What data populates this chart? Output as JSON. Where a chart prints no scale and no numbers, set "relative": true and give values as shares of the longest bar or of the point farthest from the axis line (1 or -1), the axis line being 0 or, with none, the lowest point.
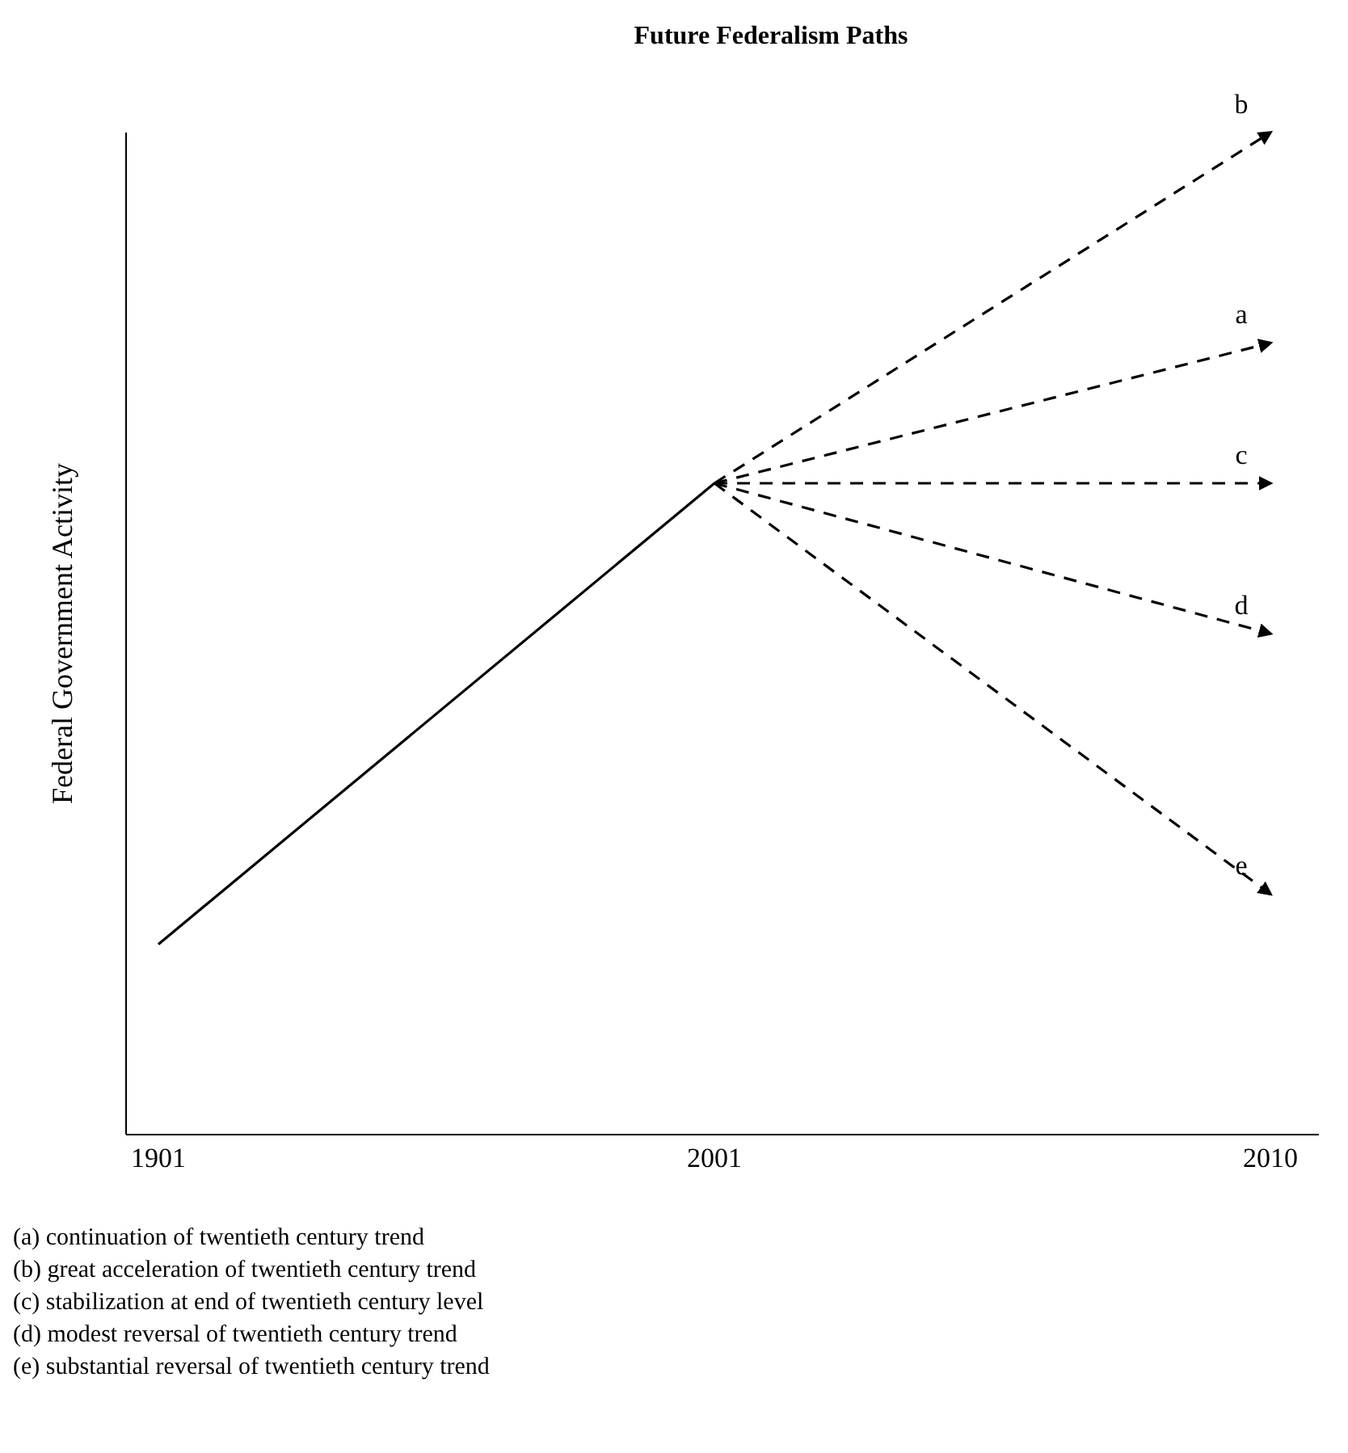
{
  "chart_data": {
    "type": "line",
    "title": "Future Federalism Paths",
    "ylabel": "Federal Government Activity",
    "categories": [
      "1901",
      "2001",
      "2010"
    ],
    "relative": true,
    "legend": false,
    "grid": false,
    "marker": "none",
    "line_style": "solid",
    "series": [
      {
        "color": "#000000",
        "values": [
          0.19,
          0.65,
          null
        ]
      },
      {
        "name": "b",
        "color": "#000000",
        "line_style": "dashed",
        "values": [
          null,
          0.65,
          1
        ]
      },
      {
        "name": "a",
        "color": "#000000",
        "line_style": "dashed",
        "values": [
          null,
          0.65,
          0.79
        ]
      },
      {
        "name": "c",
        "color": "#000000",
        "line_style": "dashed",
        "values": [
          null,
          0.65,
          0.65
        ]
      },
      {
        "name": "d",
        "color": "#000000",
        "line_style": "dashed",
        "values": [
          null,
          0.65,
          0.5
        ]
      },
      {
        "name": "e",
        "color": "#000000",
        "line_style": "dashed",
        "values": [
          null,
          0.65,
          0.24
        ]
      }
    ],
    "annotations": [
      "(a) continuation of twentieth century trend",
      "(b) great acceleration of twentieth century trend",
      "(c) stabilization at end of twentieth century level",
      "(d) modest reversal of twentieth century trend",
      "(e) substantial reversal of twentieth century trend"
    ]
  }
}
